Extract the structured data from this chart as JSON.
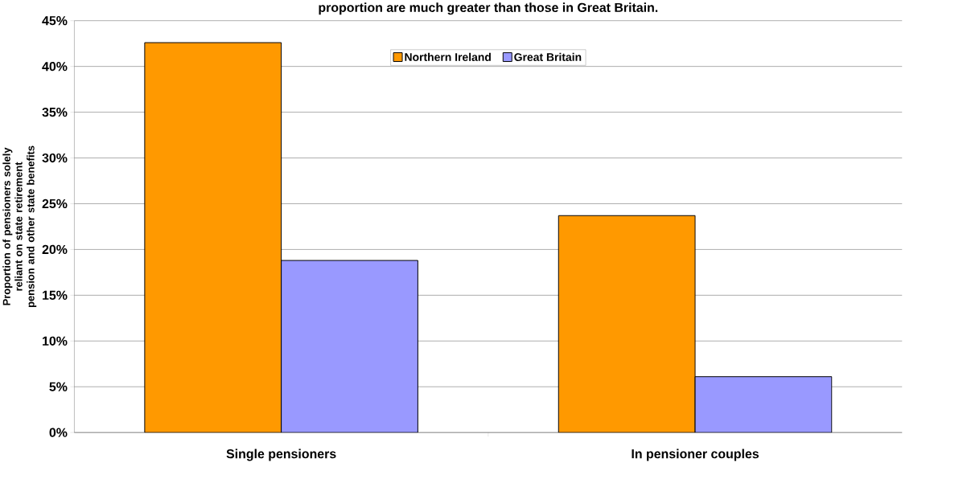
{
  "chart_data": {
    "type": "bar",
    "title": "proportion are much greater than those in Great Britain.",
    "ylabel": "Proportion of pensioners solely reliant on state retirement pension and other state benefits",
    "categories": [
      "Single pensioners",
      "In pensioner couples"
    ],
    "series": [
      {
        "name": "Northern Ireland",
        "color": "#ff9900",
        "values": [
          42.6,
          23.7
        ]
      },
      {
        "name": "Great Britain",
        "color": "#9999ff",
        "values": [
          18.8,
          6.1
        ]
      }
    ],
    "ylim": [
      0,
      45
    ],
    "yticks": [
      {
        "value": 0,
        "label": "0%"
      },
      {
        "value": 5,
        "label": "5%"
      },
      {
        "value": 10,
        "label": "10%"
      },
      {
        "value": 15,
        "label": "15%"
      },
      {
        "value": 20,
        "label": "20%"
      },
      {
        "value": 25,
        "label": "25%"
      },
      {
        "value": 30,
        "label": "30%"
      },
      {
        "value": 35,
        "label": "35%"
      },
      {
        "value": 40,
        "label": "40%"
      },
      {
        "value": 45,
        "label": "45%"
      }
    ],
    "grid": "y",
    "legend": "top"
  }
}
